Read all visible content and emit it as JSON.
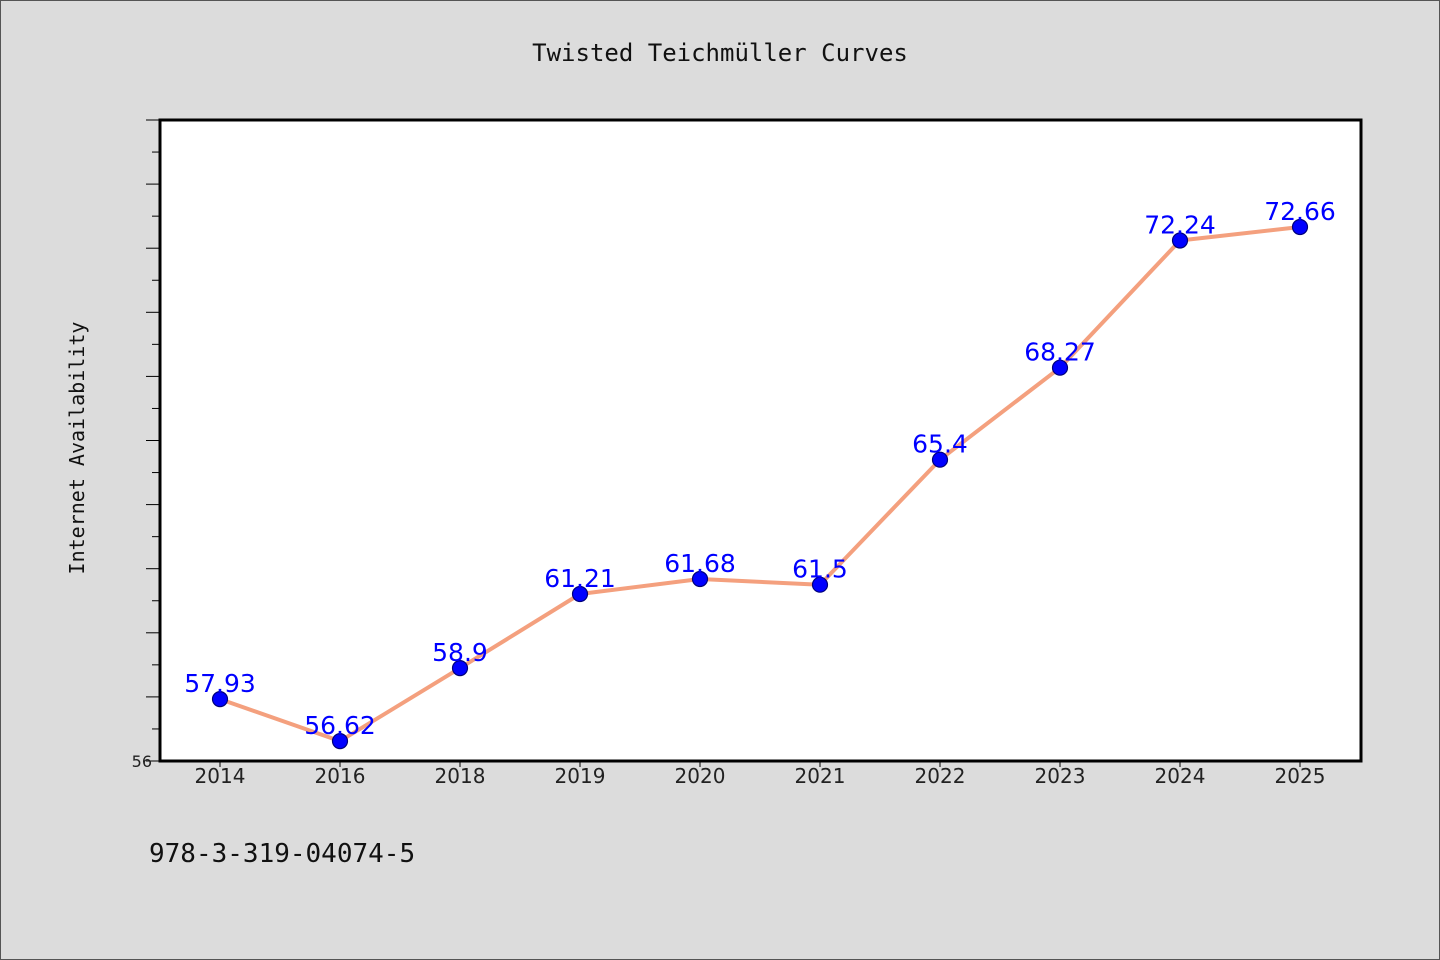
{
  "chart_data": {
    "type": "line",
    "title": "Twisted Teichmüller Curves",
    "xlabel": "",
    "ylabel": "Internet Availability",
    "categories": [
      "2014",
      "2016",
      "2018",
      "2019",
      "2020",
      "2021",
      "2022",
      "2023",
      "2024",
      "2025"
    ],
    "series": [
      {
        "values": [
          57.93,
          56.62,
          58.9,
          61.21,
          61.68,
          61.5,
          65.4,
          68.27,
          72.24,
          72.66
        ],
        "data_labels": [
          "57.93",
          "56.62",
          "58.9",
          "61.21",
          "61.68",
          "61.5",
          "65.4",
          "68.27",
          "72.24",
          "72.66"
        ]
      }
    ],
    "ylim": [
      56,
      76
    ],
    "y_tick_labels": [
      "56"
    ],
    "grid": false,
    "legend": "none",
    "colors": {
      "line": "#f4a07e",
      "marker": "#0000ff",
      "marker_edge": "#00007a",
      "data_label": "#0000ff",
      "plot_background": "#ffffff",
      "figure_background": "#dcdcdc"
    }
  },
  "footnote": "978-3-319-04074-5"
}
